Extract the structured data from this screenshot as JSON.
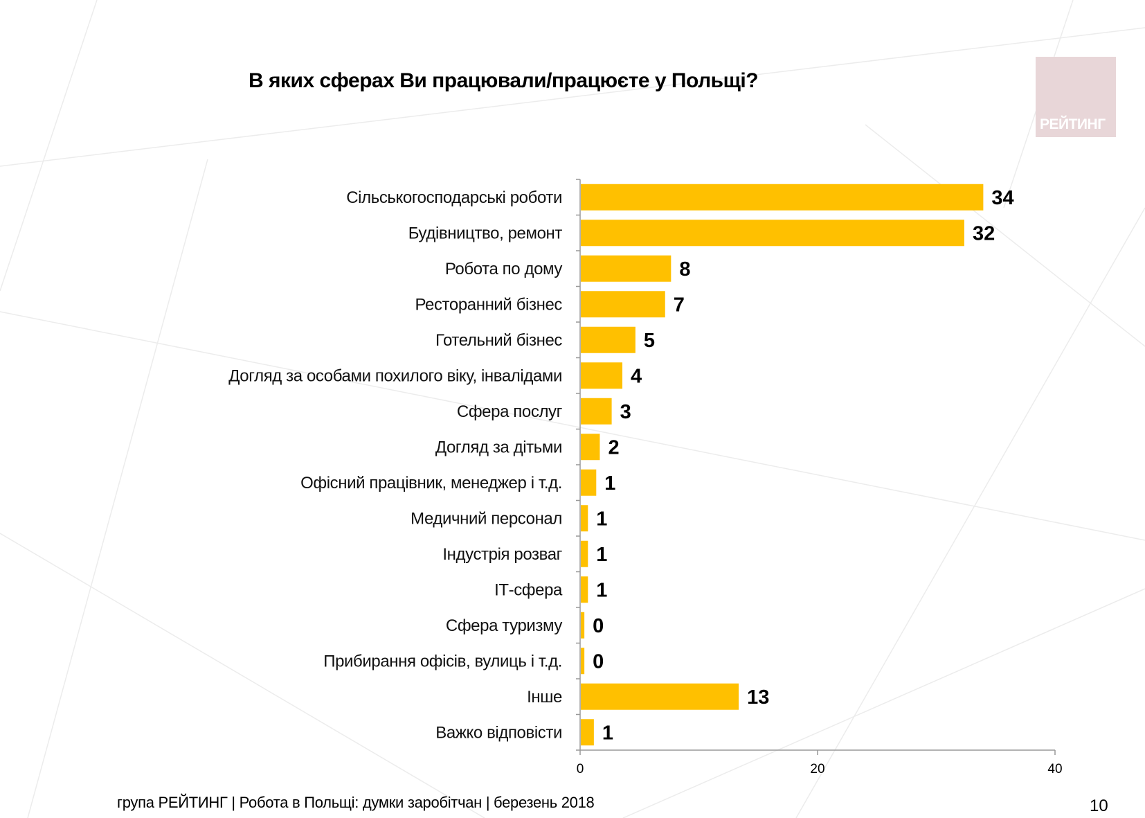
{
  "title": "В яких сферах Ви працювали/працюєте у Польщі?",
  "logo_text": "РЕЙТИНГ",
  "footer": "група РЕЙТИНГ  | Робота в Польщі: думки заробітчан  |  березень 2018",
  "page_number": "10",
  "colors": {
    "bar": "#FFC000",
    "axis": "#999999"
  },
  "chart_data": {
    "type": "bar",
    "orientation": "horizontal",
    "title": "В яких сферах Ви працювали/працюєте у Польщі?",
    "categories": [
      "Сільськогосподарські роботи",
      "Будівництво, ремонт",
      "Робота по дому",
      "Ресторанний бізнес",
      "Готельний бізнес",
      "Догляд за особами похилого віку, інвалідами",
      "Сфера послуг",
      "Догляд за дітьми",
      "Офісний працівник, менеджер і т.д.",
      "Медичний персонал",
      "Індустрія розваг",
      "ІТ-сфера",
      "Сфера туризму",
      "Прибирання офісів, вулиць і т.д.",
      "Інше",
      "Важко відповісти"
    ],
    "values": [
      33.9,
      32.3,
      7.6,
      7.1,
      4.6,
      3.5,
      2.6,
      1.6,
      1.3,
      0.6,
      0.6,
      0.6,
      0.3,
      0.3,
      13.3,
      1.1
    ],
    "data_labels": [
      "34",
      "32",
      "8",
      "7",
      "5",
      "4",
      "3",
      "2",
      "1",
      "1",
      "1",
      "1",
      "0",
      "0",
      "13",
      "1"
    ],
    "xlim": [
      0,
      40
    ],
    "xticks": [
      "0",
      "20",
      "40"
    ],
    "grid": false,
    "legend": "none"
  }
}
